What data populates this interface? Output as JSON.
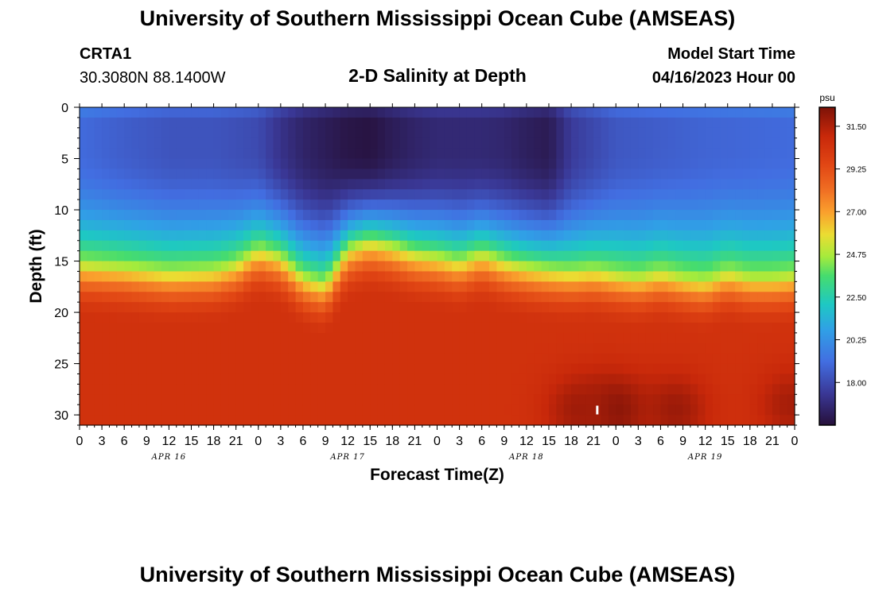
{
  "page": {
    "title": "University of Southern Mississippi Ocean Cube (AMSEAS)",
    "station_id": "CRTA1",
    "station_coords": "30.3080N  88.1400W",
    "chart_title": "2-D Salinity at Depth",
    "model_start_label": "Model Start Time",
    "model_start_value": "04/16/2023 Hour 00",
    "footer_title": "University of Southern Mississippi Ocean Cube (AMSEAS)"
  },
  "chart_data": {
    "type": "heatmap",
    "title": "2-D Salinity at Depth",
    "xlabel": "Forecast Time(Z)",
    "ylabel": "Depth (ft)",
    "x_hours_range": [
      0,
      96
    ],
    "x_tick_step_hours": 3,
    "x_tick_labels": [
      "0",
      "3",
      "6",
      "9",
      "12",
      "15",
      "18",
      "21",
      "0",
      "3",
      "6",
      "9",
      "12",
      "15",
      "18",
      "21",
      "0",
      "3",
      "6",
      "9",
      "12",
      "15",
      "18",
      "21",
      "0",
      "3",
      "6",
      "9",
      "12",
      "15",
      "18",
      "21",
      "0"
    ],
    "day_labels": [
      {
        "hour": 12,
        "label": "APR 16"
      },
      {
        "hour": 36,
        "label": "APR 17"
      },
      {
        "hour": 60,
        "label": "APR 18"
      },
      {
        "hour": 84,
        "label": "APR 19"
      }
    ],
    "y_range_ft": [
      0,
      31
    ],
    "y_ticks": [
      0,
      5,
      10,
      15,
      20,
      25,
      30
    ],
    "colorbar": {
      "unit": "psu",
      "range": [
        15.75,
        32.5
      ],
      "tick_values": [
        18.0,
        20.25,
        22.5,
        24.75,
        27.0,
        29.25,
        31.5
      ],
      "tick_labels": [
        "18.00",
        "20.25",
        "22.50",
        "24.75",
        "27.00",
        "29.25",
        "31.50"
      ]
    },
    "surface_profile": {
      "note": "approximate salinity (psu) vs hour for near-surface layer (~2-4 ft)",
      "hours": [
        0,
        6,
        12,
        18,
        24,
        27,
        30,
        33,
        36,
        39,
        42,
        45,
        48,
        54,
        57,
        60,
        63,
        66,
        72,
        78,
        84,
        90,
        96
      ],
      "values": [
        19.0,
        18.6,
        18.3,
        18.3,
        18.0,
        17.2,
        16.6,
        16.3,
        16.0,
        15.9,
        16.3,
        16.6,
        16.8,
        16.8,
        16.7,
        16.4,
        16.2,
        17.5,
        18.4,
        18.6,
        18.8,
        18.9,
        19.0
      ]
    },
    "halocline_depth": {
      "note": "approximate depth (ft) of the ~24.75 psu contour vs hour",
      "hours": [
        0,
        6,
        12,
        18,
        21,
        24,
        27,
        30,
        33,
        36,
        39,
        42,
        45,
        48,
        51,
        54,
        57,
        60,
        63,
        66,
        69,
        72,
        75,
        78,
        81,
        84,
        87,
        90,
        93,
        96
      ],
      "values": [
        15.2,
        15.5,
        16.0,
        15.8,
        15.2,
        13.8,
        14.5,
        16.5,
        17.2,
        13.8,
        13.0,
        13.5,
        14.2,
        14.5,
        15.0,
        14.2,
        15.0,
        15.5,
        15.8,
        16.0,
        15.8,
        16.2,
        16.5,
        16.0,
        16.5,
        16.8,
        16.0,
        16.5,
        16.5,
        16.3
      ]
    },
    "bottom_value": 30.5,
    "high_salinity_patches": [
      {
        "hour": 72,
        "depth_ft": 29.5,
        "value": 32.3
      },
      {
        "hour": 67,
        "depth_ft": 29.5,
        "value": 31.8
      },
      {
        "hour": 80,
        "depth_ft": 29.5,
        "value": 31.9
      },
      {
        "hour": 95.5,
        "depth_ft": 29.0,
        "value": 31.7
      }
    ]
  }
}
